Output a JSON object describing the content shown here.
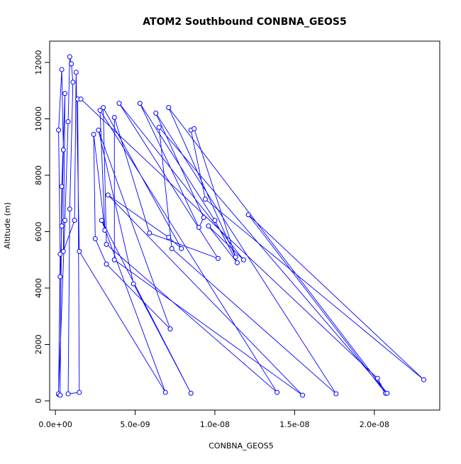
{
  "chart_data": {
    "type": "line",
    "title": "ATOM2 Southbound CONBNA_GEOS5",
    "x_label": "CONBNA_GEOS5",
    "y_label": "Altitude (m)",
    "color": "#0000ff",
    "markers": true,
    "x": [
      2e-10,
      3e-10,
      2e-10,
      4e-10,
      5e-10,
      4e-10,
      3e-10,
      2e-10,
      6e-10,
      8e-10,
      9e-10,
      1e-09,
      1.1e-09,
      9e-10,
      8e-10,
      1.5e-09,
      1.4e-09,
      1.6e-09,
      2.02e-08,
      2.07e-08,
      1.21e-08,
      2.31e-08,
      9.4e-09,
      8.5e-09,
      8.7e-09,
      1.13e-08,
      7.1e-09,
      2.08e-08,
      6.5e-09,
      7.3e-09,
      1.76e-08,
      6.3e-09,
      9.3e-09,
      9e-09,
      5.3e-09,
      1e-08,
      1.14e-08,
      9.6e-09,
      1.18e-08,
      4e-09,
      1.02e-08,
      5.9e-09,
      3.7e-09,
      3.7e-09,
      1.55e-08,
      3.3e-09,
      7.1e-09,
      7.9e-09,
      3e-09,
      3.2e-09,
      1.39e-08,
      2.8e-09,
      3.1e-09,
      2.4e-09,
      2.5e-09,
      3.2e-09,
      7.2e-09,
      2.7e-09,
      4.9e-09,
      8.5e-09,
      2.9e-09,
      6.9e-09,
      1.5e-09,
      1.3e-09,
      1.2e-09,
      5e-10,
      6e-10,
      4e-10,
      3e-10
    ],
    "y": [
      230,
      5200,
      9600,
      11750,
      8900,
      6200,
      4400,
      250,
      6400,
      9900,
      12200,
      11950,
      11300,
      6800,
      250,
      300,
      10700,
      10700,
      800,
      270,
      6600,
      750,
      7150,
      9600,
      9650,
      5100,
      10400,
      270,
      9700,
      5400,
      250,
      10200,
      6500,
      6150,
      10550,
      6400,
      4900,
      6200,
      5000,
      10550,
      5050,
      5950,
      10050,
      5000,
      200,
      7300,
      5800,
      5400,
      10400,
      5550,
      300,
      10300,
      6050,
      9450,
      5750,
      4850,
      2550,
      9600,
      4150,
      270,
      6400,
      300,
      5300,
      11650,
      6400,
      5300,
      10900,
      7600,
      200
    ],
    "xlim": [
      -3.6e-10,
      2.41e-08
    ],
    "ylim": [
      -327,
      12755
    ],
    "xticks": [
      {
        "value": 0,
        "label": "0.0e+00"
      },
      {
        "value": 5e-09,
        "label": "5.0e-09"
      },
      {
        "value": 1e-08,
        "label": "1.0e-08"
      },
      {
        "value": 1.5e-08,
        "label": "1.5e-08"
      },
      {
        "value": 2e-08,
        "label": "2.0e-08"
      }
    ],
    "yticks": [
      0,
      2000,
      4000,
      6000,
      8000,
      10000,
      12000
    ]
  }
}
